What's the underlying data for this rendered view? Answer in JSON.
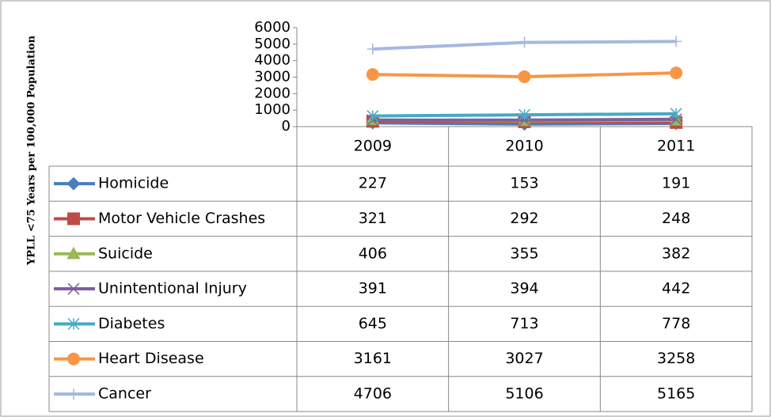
{
  "chart_data": {
    "type": "line",
    "y_label": "YPLL <75 Years per 100,000 Population",
    "categories": [
      "2009",
      "2010",
      "2011"
    ],
    "ylim": [
      0,
      6000
    ],
    "yticks": [
      0,
      1000,
      2000,
      3000,
      4000,
      5000,
      6000
    ],
    "grid": false,
    "series": [
      {
        "name": "Homicide",
        "color": "#4a7ebb",
        "marker": "diamond",
        "values": [
          227,
          153,
          191
        ]
      },
      {
        "name": "Motor Vehicle Crashes",
        "color": "#be4b48",
        "marker": "square",
        "values": [
          321,
          292,
          248
        ]
      },
      {
        "name": "Suicide",
        "color": "#98b954",
        "marker": "triangle",
        "values": [
          406,
          355,
          382
        ]
      },
      {
        "name": "Unintentional Injury",
        "color": "#7d60a0",
        "marker": "x",
        "values": [
          391,
          394,
          442
        ]
      },
      {
        "name": "Diabetes",
        "color": "#46aac5",
        "marker": "star",
        "values": [
          645,
          713,
          778
        ]
      },
      {
        "name": "Heart Disease",
        "color": "#f79646",
        "marker": "circle",
        "values": [
          3161,
          3027,
          3258
        ]
      },
      {
        "name": "Cancer",
        "color": "#a5b8e0",
        "marker": "plus",
        "values": [
          4706,
          5106,
          5165
        ]
      }
    ]
  }
}
